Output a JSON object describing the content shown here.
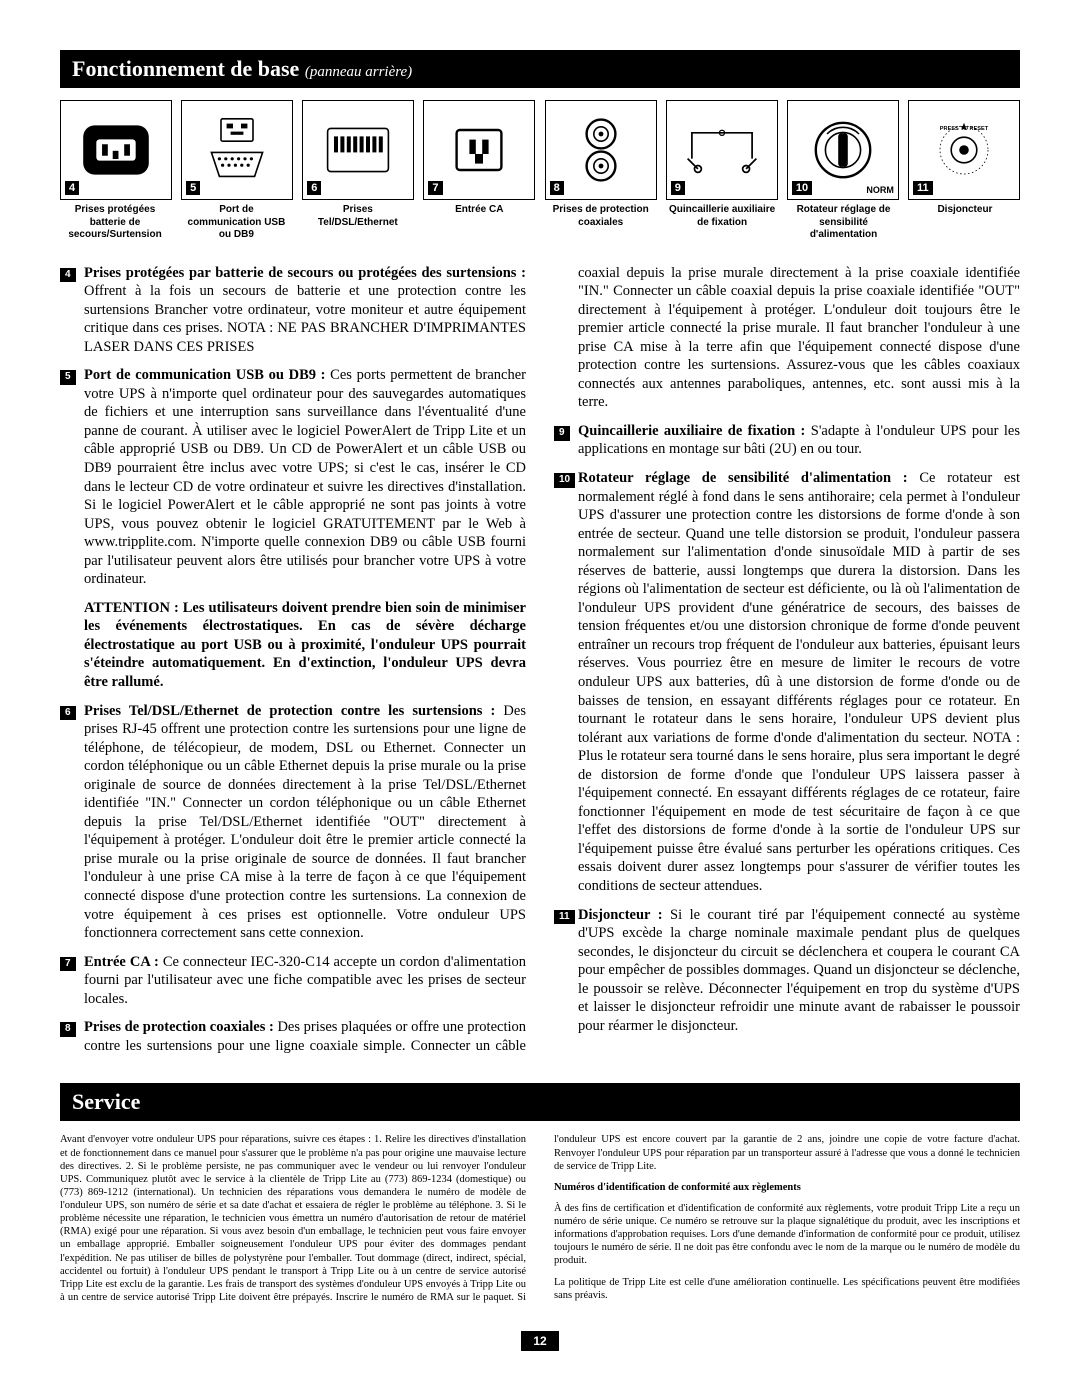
{
  "h1": {
    "main": "Fonctionnement de base",
    "sub": "(panneau arrière)"
  },
  "icons": [
    {
      "n": "4",
      "svg": "<svg viewBox='0 0 100 90' width='82' height='74'><rect x='10' y='15' width='80' height='60' rx='14' fill='#000'/><rect x='26' y='32' width='48' height='26' rx='4' fill='#fff'/><rect x='33' y='38' width='7' height='14' fill='#000'/><rect x='60' y='38' width='7' height='14' fill='#000'/><rect x='46' y='46' width='7' height='10' fill='#000'/></svg>"
    },
    {
      "n": "5",
      "svg": "<svg viewBox='0 0 100 90' width='80' height='72'><rect x='30' y='6' width='40' height='28' rx='2' fill='none' stroke='#000' stroke-width='2'/><rect x='37' y='12' width='8' height='6' fill='#000'/><rect x='55' y='12' width='8' height='6' fill='#000'/><rect x='42' y='22' width='16' height='4' fill='#000'/><path d='M18 48 h64 l-10 30 h-44 z' fill='none' stroke='#000' stroke-width='2'/><g fill='#000'><circle cx='28' cy='56' r='2'/><circle cx='36' cy='56' r='2'/><circle cx='44' cy='56' r='2'/><circle cx='52' cy='56' r='2'/><circle cx='60' cy='56' r='2'/><circle cx='68' cy='56' r='2'/><circle cx='32' cy='64' r='2'/><circle cx='40' cy='64' r='2'/><circle cx='48' cy='64' r='2'/><circle cx='56' cy='64' r='2'/><circle cx='64' cy='64' r='2'/></g></svg>"
    },
    {
      "n": "6",
      "svg": "<svg viewBox='0 0 100 90' width='80' height='72'><rect x='12' y='18' width='76' height='54' rx='4' fill='none' stroke='#000' stroke-width='2'/><g fill='#000'><rect x='20' y='28' width='5' height='20'/><rect x='28' y='28' width='5' height='20'/><rect x='36' y='28' width='5' height='20'/><rect x='44' y='28' width='5' height='20'/><rect x='52' y='28' width='5' height='20'/><rect x='60' y='28' width='5' height='20'/><rect x='68' y='28' width='5' height='20'/><rect x='76' y='28' width='5' height='20'/></g></svg>"
    },
    {
      "n": "7",
      "svg": "<svg viewBox='0 0 100 90' width='80' height='72'><rect x='22' y='20' width='56' height='50' rx='4' fill='none' stroke='#000' stroke-width='3'/><rect x='38' y='32' width='8' height='18' fill='#000'/><rect x='54' y='32' width='8' height='18' fill='#000'/><rect x='45' y='50' width='10' height='12' fill='#000'/></svg>"
    },
    {
      "n": "8",
      "svg": "<svg viewBox='0 0 100 90' width='80' height='72'><circle cx='50' cy='25' r='18' fill='none' stroke='#000' stroke-width='3'/><circle cx='50' cy='25' r='9' fill='none' stroke='#000' stroke-width='2'/><circle cx='50' cy='25' r='3' fill='#000'/><circle cx='50' cy='65' r='18' fill='none' stroke='#000' stroke-width='3'/><circle cx='50' cy='65' r='9' fill='none' stroke='#000' stroke-width='2'/><circle cx='50' cy='65' r='3' fill='#000'/></svg>"
    },
    {
      "n": "9",
      "svg": "<svg viewBox='0 0 100 90' width='86' height='78'><path d='M15 55 l0 -30 l70 0 l0 30' fill='none' stroke='#000' stroke-width='2'/><path d='M10 55 l12 12 M90 55 l-12 12' fill='none' stroke='#000' stroke-width='2'/><circle cx='22' cy='67' r='4' fill='none' stroke='#000' stroke-width='2'/><circle cx='78' cy='67' r='4' fill='none' stroke='#000' stroke-width='2'/><circle cx='50' cy='25' r='3' fill='none' stroke='#000' stroke-width='1.5'/></svg>"
    },
    {
      "n": "10",
      "svg": "<svg viewBox='0 0 100 90' width='80' height='72'><circle cx='50' cy='45' r='34' fill='none' stroke='#000' stroke-width='3'/><circle cx='50' cy='45' r='22' fill='none' stroke='#000' stroke-width='2'/><rect x='44' y='24' width='12' height='42' rx='4' fill='#000'/><path d='M30 25 a28 28 0 0 1 40 0' fill='none' stroke='#000' stroke-width='2'/></svg>",
      "norm": "NORM"
    },
    {
      "n": "11",
      "svg": "<svg viewBox='0 0 100 90' width='80' height='72'><g transform='translate(50 45)'><g fill='#000'><path d='M0 -34 l3 8 l-6 0 z'/></g><g id='g'></g></g><circle cx='50' cy='45' r='30' fill='none' stroke='#000' stroke-width='1' stroke-dasharray='2 3'/><circle cx='50' cy='45' r='16' fill='none' stroke='#000' stroke-width='2'/><circle cx='50' cy='45' r='6' fill='#000'/><text x='50' y='20' font-size='7' font-family='Arial' font-weight='bold' text-anchor='middle'>PRESS TO RESET</text></svg>"
    }
  ],
  "captions": [
    "Prises protégées batterie de secours/Surtension",
    "Port de communication USB ou DB9",
    "Prises Tel/DSL/Ethernet",
    "Entrée CA",
    "Prises de protection coaxiales",
    "Quincaillerie auxiliaire de fixation",
    "Rotateur réglage de sensibilité d'alimentation",
    "Disjoncteur"
  ],
  "body": [
    {
      "n": "4",
      "b": "Prises protégées par batterie de secours ou protégées des surtensions :",
      "t": " Offrent à la fois un secours de batterie et une protection contre les surtensions Brancher votre ordinateur, votre moniteur et autre équipement critique dans ces prises. NOTA : NE PAS BRANCHER D'IMPRIMANTES LASER DANS CES PRISES"
    },
    {
      "n": "5",
      "b": "Port de communication USB ou DB9 :",
      "t": " Ces ports permettent de brancher votre UPS à n'importe quel ordinateur pour des sauvegardes automatiques de fichiers et une interruption sans surveillance dans l'éventualité d'une panne de courant. À utiliser avec le logiciel PowerAlert de Tripp Lite et un câble approprié USB ou DB9. Un CD de PowerAlert et un câble USB ou DB9 pourraient être inclus avec votre UPS; si c'est le cas, insérer le CD dans le lecteur CD de votre ordinateur et suivre les directives d'installation. Si le logiciel PowerAlert et le câble approprié ne sont pas joints à votre UPS, vous pouvez obtenir le  logiciel GRATUITEMENT par le Web à www.tripplite.com. N'importe quelle connexion DB9 ou câble USB fourni par l'utilisateur peuvent alors être utilisés pour brancher votre UPS à votre ordinateur."
    },
    {
      "attn": "ATTENTION : Les utilisateurs doivent prendre bien soin de minimiser les événements électrostatiques. En cas de sévère décharge  électrostatique au port USB ou à proximité, l'onduleur UPS pourrait s'éteindre automatiquement. En d'extinction, l'onduleur UPS  devra être rallumé."
    },
    {
      "n": "6",
      "b": "Prises Tel/DSL/Ethernet de protection contre les surtensions :",
      "t": " Des prises RJ-45 offrent une protection contre les surtensions pour une ligne de téléphone, de télécopieur, de modem, DSL ou Ethernet. Connecter un cordon téléphonique ou un câble Ethernet depuis la prise murale ou la prise originale de source de données directement à la prise Tel/DSL/Ethernet identifiée \"IN.\" Connecter un cordon téléphonique ou un câble Ethernet depuis la prise Tel/DSL/Ethernet identifiée \"OUT\" directement à l'équipement à protéger. L'onduleur doit être le premier article connecté la prise murale ou la prise originale de source de données. Il faut brancher l'onduleur à une prise CA mise à la terre de façon à ce que l'équipement connecté dispose d'une protection contre les surtensions. La connexion de votre équipement à ces prises est optionnelle. Votre onduleur UPS fonctionnera correctement sans cette connexion."
    },
    {
      "n": "7",
      "b": "Entrée CA :",
      "t": " Ce connecteur IEC-320-C14 accepte un cordon d'alimentation fourni par l'utilisateur avec une fiche compatible avec les prises de secteur locales."
    },
    {
      "n": "8",
      "b": "Prises de protection coaxiales :",
      "t": " Des prises plaquées or offre une protection contre les surtensions pour une ligne coaxiale simple. Connecter un câble coaxial depuis la prise murale directement à la prise coaxiale identifiée \"IN.\" Connecter un câble coaxial depuis la prise coaxiale identifiée \"OUT\" directement à l'équipement à protéger. L'onduleur doit toujours être le premier article connecté la prise murale. Il faut brancher l'onduleur à une prise CA mise à la terre afin que l'équipement connecté dispose d'une protection contre les surtensions. Assurez-vous que les câbles coaxiaux connectés aux antennes paraboliques, antennes, etc. sont aussi mis à la terre."
    },
    {
      "n": "9",
      "b": "Quincaillerie auxiliaire de fixation :",
      "t": " S'adapte à l'onduleur UPS pour les applications en montage sur bâti (2U) en ou tour."
    },
    {
      "n": "10",
      "b": "Rotateur réglage de sensibilité d'alimentation :",
      "t": " Ce rotateur est normalement réglé à fond dans le sens antihoraire; cela permet à l'onduleur UPS d'assurer une protection contre les distorsions de forme d'onde à son entrée de secteur. Quand une telle distorsion se produit, l'onduleur passera normalement sur l'alimentation d'onde sinusoïdale MID à partir de ses réserves de batterie, aussi longtemps que durera la distorsion. Dans les régions où l'alimentation de secteur est déficiente, ou là où l'alimentation de l'onduleur UPS provident d'une génératrice de secours, des baisses de tension fréquentes et/ou une distorsion chronique de forme d'onde peuvent entraîner un recours trop fréquent de l'onduleur aux batteries, épuisant leurs réserves. Vous pourriez être en mesure de limiter le recours de votre onduleur UPS aux batteries, dû à une distorsion de forme d'onde ou de baisses de tension, en essayant différents réglages pour ce rotateur. En tournant le rotateur dans le sens horaire, l'onduleur UPS devient plus tolérant aux variations de forme d'onde d'alimentation du secteur. NOTA : Plus le rotateur sera tourné dans le sens horaire, plus sera important le degré de distorsion de forme d'onde que l'onduleur UPS laissera passer à l'équipement connecté. En essayant différents réglages de ce rotateur, faire fonctionner l'équipement en mode de test sécuritaire de façon à ce que l'effet des distorsions de forme d'onde à la sortie de l'onduleur UPS sur l'équipement puisse être évalué sans perturber les opérations critiques. Ces essais doivent durer assez longtemps pour s'assurer de vérifier toutes les conditions de secteur attendues."
    },
    {
      "n": "11",
      "b": "Disjoncteur :",
      "t": " Si le courant tiré par l'équipement connecté au système d'UPS excède la charge nominale maximale pendant plus de quelques secondes, le disjoncteur du circuit se déclenchera et coupera le courant CA pour empêcher de possibles dommages. Quand un disjoncteur se déclenche, le poussoir se relève. Déconnecter l'équipement en trop du système d'UPS et laisser le disjoncteur refroidir une minute avant de rabaisser le poussoir pour réarmer le disjoncteur."
    }
  ],
  "h2": "Service",
  "svc": [
    "Avant d'envoyer votre onduleur UPS pour réparations, suivre ces étapes : 1. Relire les directives d'installation et de fonctionnement dans ce manuel pour s'assurer que le problème n'a pas pour origine une mauvaise lecture des directives. 2. Si le problème persiste, ne pas communiquer avec le vendeur ou lui renvoyer l'onduleur UPS. Communiquez plutôt avec le service à la clientèle de Tripp Lite au (773) 869-1234 (domestique) ou (773) 869-1212 (international). Un technicien des réparations vous demandera le numéro de modèle de l'onduleur UPS, son numéro de série et sa date d'achat et essaiera de régler le problème au téléphone. 3. Si le problème nécessite une réparation, le technicien vous émettra un numéro d'autorisation de retour de matériel (RMA) exigé pour une réparation. Si vous avez besoin d'un emballage, le technicien peut vous faire envoyer un emballage approprié. Emballer soigneusement l'onduleur UPS pour éviter des dommages pendant l'expédition. Ne pas utiliser de billes de polystyrène pour l'emballer. Tout dommage (direct, indirect, spécial, accidentel ou fortuit) à l'onduleur UPS pendant le transport à Tripp Lite ou à un centre de service autorisé Tripp Lite est exclu de la garantie. Les frais de transport des systèmes d'onduleur UPS envoyés à Tripp Lite ou à un centre de service autorisé Tripp Lite doivent être prépayés. Inscrire le numéro de RMA sur le paquet. Si l'onduleur UPS est encore couvert par la garantie de 2 ans, joindre une copie de votre facture d'achat. Renvoyer l'onduleur UPS pour réparation par un transporteur assuré à l'adresse que vous a donné le technicien de service de Tripp Lite.",
    "<b>Numéros d'identification de conformité aux règlements</b>",
    "À des fins de certification et d'identification de conformité aux règlements, votre produit Tripp Lite a reçu un numéro de série unique.  Ce numéro se retrouve sur la plaque signalétique du produit, avec les inscriptions et informations d'approbation requises.  Lors d'une demande d'information de conformité pour ce produit, utilisez toujours le numéro de série.  Il ne doit pas être confondu avec le nom de la marque ou le numéro de modèle du produit.",
    "La politique de Tripp Lite est celle d'une amélioration continuelle. Les spécifications peuvent être modifiées sans préavis."
  ],
  "page": "12"
}
